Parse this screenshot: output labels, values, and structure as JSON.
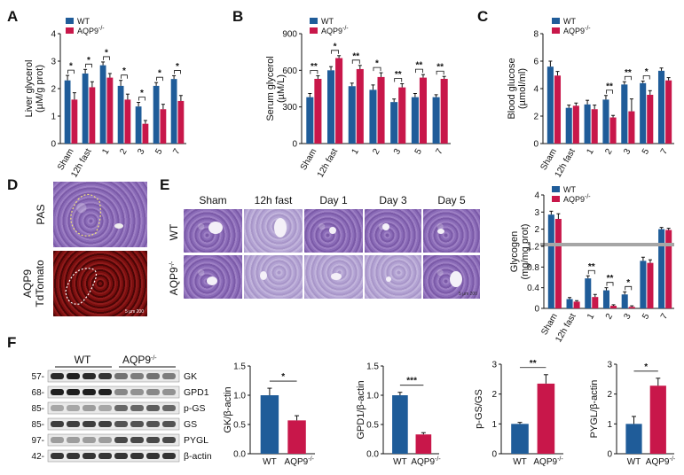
{
  "panel_labels": {
    "A": "A",
    "B": "B",
    "C": "C",
    "D": "D",
    "E": "E",
    "F": "F"
  },
  "colors": {
    "wt": "#1f5c99",
    "aqp9": "#c8174a"
  },
  "legend": {
    "wt": "WT",
    "aqp9": "AQP9",
    "aqp9_sup": "-/-"
  },
  "chart_data": [
    {
      "id": "A",
      "type": "bar",
      "categories": [
        "Sham",
        "12h fast",
        "1",
        "2",
        "3",
        "5",
        "7"
      ],
      "series": [
        {
          "name": "WT",
          "values": [
            2.3,
            2.55,
            2.85,
            2.1,
            1.35,
            2.1,
            2.35
          ]
        },
        {
          "name": "AQP9-/-",
          "values": [
            1.6,
            2.05,
            2.4,
            1.6,
            0.72,
            1.25,
            1.55
          ]
        }
      ],
      "errors": [
        [
          0.18,
          0.15,
          0.12,
          0.2,
          0.15,
          0.12,
          0.12
        ],
        [
          0.25,
          0.2,
          0.15,
          0.2,
          0.12,
          0.18,
          0.2
        ]
      ],
      "sig": [
        "*",
        "*",
        "*",
        "*",
        "*",
        "*",
        "*"
      ],
      "ylabel": "Liver glycerol",
      "ylabel2": "(µM/g prot)",
      "ylim": [
        0,
        4
      ],
      "yticks": [
        0,
        1,
        2,
        3,
        4
      ]
    },
    {
      "id": "B",
      "type": "bar",
      "categories": [
        "Sham",
        "12h fast",
        "1",
        "2",
        "3",
        "5",
        "7"
      ],
      "series": [
        {
          "name": "WT",
          "values": [
            380,
            600,
            470,
            440,
            340,
            380,
            380
          ]
        },
        {
          "name": "AQP9-/-",
          "values": [
            530,
            700,
            610,
            545,
            460,
            540,
            530
          ]
        }
      ],
      "errors": [
        [
          30,
          30,
          25,
          40,
          25,
          30,
          20
        ],
        [
          25,
          20,
          30,
          35,
          30,
          25,
          20
        ]
      ],
      "sig": [
        "**",
        "*",
        "**",
        "*",
        "**",
        "**",
        "**"
      ],
      "ylabel": "Serum glycerol",
      "ylabel2": "(µM/L)",
      "ylim": [
        0,
        900
      ],
      "yticks": [
        0,
        300,
        600,
        900
      ]
    },
    {
      "id": "C",
      "type": "bar",
      "categories": [
        "Sham",
        "12h fast",
        "1",
        "2",
        "3",
        "5",
        "7"
      ],
      "series": [
        {
          "name": "WT",
          "values": [
            5.6,
            2.6,
            2.85,
            3.2,
            4.3,
            4.4,
            5.3
          ]
        },
        {
          "name": "AQP9-/-",
          "values": [
            4.95,
            2.75,
            2.5,
            1.9,
            2.35,
            3.55,
            4.6
          ]
        }
      ],
      "errors": [
        [
          0.4,
          0.2,
          0.3,
          0.3,
          0.2,
          0.15,
          0.2
        ],
        [
          0.3,
          0.2,
          0.3,
          0.15,
          0.9,
          0.3,
          0.2
        ]
      ],
      "sig": [
        "",
        "",
        "",
        "**",
        "**",
        "*",
        ""
      ],
      "ylabel": "Blood glucose",
      "ylabel2": "(µmol/ml)",
      "ylim": [
        0,
        8
      ],
      "yticks": [
        0,
        2,
        4,
        6,
        8
      ]
    },
    {
      "id": "E-glycogen",
      "type": "bar",
      "categories": [
        "Sham",
        "12h fast",
        "1",
        "2",
        "3",
        "5",
        "7"
      ],
      "series": [
        {
          "name": "WT",
          "values": [
            2.85,
            0.18,
            0.58,
            0.35,
            0.27,
            0.92,
            2.0
          ]
        },
        {
          "name": "AQP9-/-",
          "values": [
            2.6,
            0.13,
            0.22,
            0.05,
            0.03,
            0.88,
            1.95
          ]
        }
      ],
      "errors": [
        [
          0.2,
          0.03,
          0.05,
          0.05,
          0.05,
          0.07,
          0.1
        ],
        [
          0.3,
          0.02,
          0.05,
          0.02,
          0.02,
          0.06,
          0.1
        ]
      ],
      "sig": [
        "",
        "",
        "**",
        "**",
        "*",
        "",
        ""
      ],
      "ylabel": "Glycogen",
      "ylabel2": "(mg/mg prot)",
      "ylim_lower": [
        0,
        1.2
      ],
      "yticks_lower": [
        0,
        0.4,
        0.8,
        1.2
      ],
      "ylim_upper": [
        1.2,
        4
      ],
      "yticks_upper": [
        1,
        2,
        3,
        4
      ]
    },
    {
      "id": "F-GK",
      "type": "bar",
      "categories": [
        "WT",
        "AQP9-/-"
      ],
      "values": [
        1.0,
        0.57
      ],
      "errors": [
        0.12,
        0.08
      ],
      "sig": "*",
      "ylabel": "GK/β-actin",
      "ylim": [
        0,
        1.5
      ],
      "yticks": [
        0,
        0.5,
        1.0,
        1.5
      ]
    },
    {
      "id": "F-GPD1",
      "type": "bar",
      "categories": [
        "WT",
        "AQP9-/-"
      ],
      "values": [
        1.0,
        0.33
      ],
      "errors": [
        0.05,
        0.03
      ],
      "sig": "***",
      "ylabel": "GPD1/β-actin",
      "ylim": [
        0,
        1.5
      ],
      "yticks": [
        0,
        0.5,
        1.0,
        1.5
      ]
    },
    {
      "id": "F-pGS",
      "type": "bar",
      "categories": [
        "WT",
        "AQP9-/-"
      ],
      "values": [
        1.0,
        2.35
      ],
      "errors": [
        0.05,
        0.3
      ],
      "sig": "**",
      "ylabel": "p-GS/GS",
      "ylim": [
        0,
        3
      ],
      "yticks": [
        0,
        1,
        2,
        3
      ]
    },
    {
      "id": "F-PYGL",
      "type": "bar",
      "categories": [
        "WT",
        "AQP9-/-"
      ],
      "values": [
        1.0,
        2.28
      ],
      "errors": [
        0.25,
        0.25
      ],
      "sig": "*",
      "ylabel": "PYGL/β-actin",
      "ylim": [
        0,
        3
      ],
      "yticks": [
        0,
        1,
        2,
        3
      ]
    }
  ],
  "panelD": {
    "top_label": "PAS",
    "bottom_label1": "AQP9",
    "bottom_label2": "TdTomato",
    "scale": "5 µm  200"
  },
  "panelE": {
    "columns": [
      "Sham",
      "12h fast",
      "Day 1",
      "Day 3",
      "Day 5"
    ],
    "rows": [
      "WT",
      "AQP9"
    ],
    "row_sup": "-/-",
    "scale": "5 µm 200"
  },
  "western": {
    "group_wt": "WT",
    "group_aqp9": "AQP9",
    "group_sup": "-/-",
    "markers": [
      "57-",
      "68-",
      "85-",
      "85-",
      "97-",
      "42-"
    ],
    "proteins": [
      "GK",
      "GPD1",
      "p-GS",
      "GS",
      "PYGL",
      "β-actin"
    ],
    "intensity": [
      [
        0.9,
        0.95,
        0.9,
        0.85,
        0.55,
        0.5,
        0.55,
        0.5
      ],
      [
        0.95,
        0.95,
        0.95,
        0.95,
        0.45,
        0.4,
        0.45,
        0.4
      ],
      [
        0.3,
        0.3,
        0.35,
        0.3,
        0.6,
        0.6,
        0.65,
        0.6
      ],
      [
        0.8,
        0.8,
        0.8,
        0.8,
        0.7,
        0.7,
        0.7,
        0.7
      ],
      [
        0.35,
        0.35,
        0.35,
        0.35,
        0.75,
        0.75,
        0.75,
        0.75
      ],
      [
        0.85,
        0.85,
        0.85,
        0.85,
        0.85,
        0.85,
        0.85,
        0.85
      ]
    ]
  }
}
